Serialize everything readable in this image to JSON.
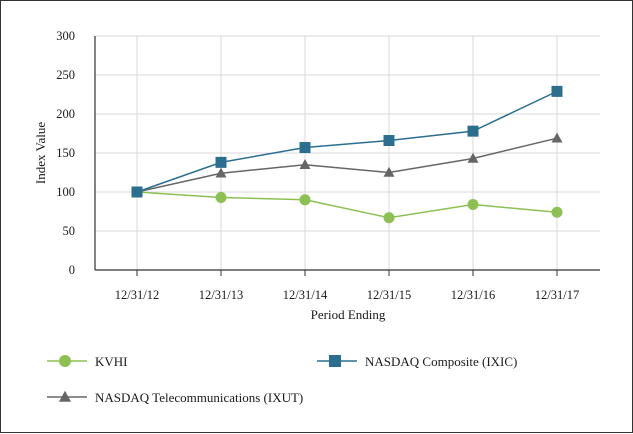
{
  "chart_data": {
    "type": "line",
    "title": "",
    "xlabel": "Period Ending",
    "ylabel": "Index Value",
    "categories": [
      "12/31/12",
      "12/31/13",
      "12/31/14",
      "12/31/15",
      "12/31/16",
      "12/31/17"
    ],
    "ylim": [
      0,
      300
    ],
    "yticks": [
      0,
      50,
      100,
      150,
      200,
      250,
      300
    ],
    "grid": true,
    "legend_position": "bottom",
    "series": [
      {
        "name": "KVHI",
        "marker": "circle",
        "color": "#8cc152",
        "values": [
          100,
          93,
          90,
          67,
          84,
          74
        ]
      },
      {
        "name": "NASDAQ Composite (IXIC)",
        "marker": "square",
        "color": "#2a6f8f",
        "values": [
          100,
          138,
          157,
          166,
          178,
          229
        ]
      },
      {
        "name": "NASDAQ Telecommunications (IXUT)",
        "marker": "triangle",
        "color": "#666666",
        "values": [
          100,
          124,
          135,
          125,
          143,
          169
        ]
      }
    ]
  }
}
